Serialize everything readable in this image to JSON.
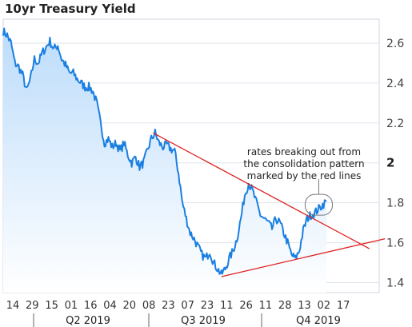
{
  "chart_data": {
    "type": "line",
    "title": "10yr Treasury Yield",
    "ylim": [
      1.35,
      2.72
    ],
    "y_ticks": [
      {
        "label": "2.6",
        "value": 2.6,
        "emph": false
      },
      {
        "label": "2.4",
        "value": 2.4,
        "emph": false
      },
      {
        "label": "2.2",
        "value": 2.2,
        "emph": false
      },
      {
        "label": "2",
        "value": 2.0,
        "emph": true
      },
      {
        "label": "1.8",
        "value": 1.8,
        "emph": false
      },
      {
        "label": "1.6",
        "value": 1.6,
        "emph": false
      },
      {
        "label": "1.4",
        "value": 1.4,
        "emph": false
      }
    ],
    "x_ticks": [
      "14",
      "29",
      "15",
      "01",
      "16",
      "04",
      "20",
      "08",
      "23",
      "07",
      "23",
      "11",
      "26",
      "11",
      "28",
      "13",
      "02",
      "17"
    ],
    "quarters": [
      "Q2 2019",
      "Q3 2019",
      "Q4 2019"
    ],
    "series": [
      {
        "values": [
          2.66,
          2.64,
          2.6,
          2.5,
          2.48,
          2.44,
          2.36,
          2.42,
          2.52,
          2.5,
          2.55,
          2.58,
          2.61,
          2.57,
          2.59,
          2.52,
          2.49,
          2.45,
          2.45,
          2.42,
          2.4,
          2.38,
          2.38,
          2.36,
          2.3,
          2.2,
          2.1,
          2.12,
          2.08,
          2.1,
          2.06,
          2.1,
          2.04,
          2.0,
          2.03,
          1.98,
          2.0,
          2.06,
          2.12,
          2.15,
          2.1,
          2.08,
          2.09,
          2.07,
          2.06,
          1.95,
          1.8,
          1.72,
          1.65,
          1.62,
          1.58,
          1.54,
          1.52,
          1.56,
          1.5,
          1.47,
          1.44,
          1.47,
          1.52,
          1.56,
          1.62,
          1.72,
          1.84,
          1.9,
          1.86,
          1.8,
          1.74,
          1.72,
          1.7,
          1.67,
          1.72,
          1.7,
          1.65,
          1.6,
          1.54,
          1.52,
          1.56,
          1.66,
          1.72,
          1.74,
          1.75,
          1.77,
          1.79,
          1.81
        ]
      }
    ],
    "trendlines": [
      {
        "from": [
          2.15
        ],
        "to": [
          1.57
        ]
      },
      {
        "from": [
          1.43
        ],
        "to": [
          1.62
        ]
      }
    ],
    "annotation": [
      "rates breaking out from",
      "the consolidation pattern",
      "marked by the red lines"
    ],
    "colors": {
      "line": "#1a7fe0",
      "fill_top": "#bcdcfb",
      "trend": "#e02020",
      "grid": "#dde3ea"
    }
  }
}
